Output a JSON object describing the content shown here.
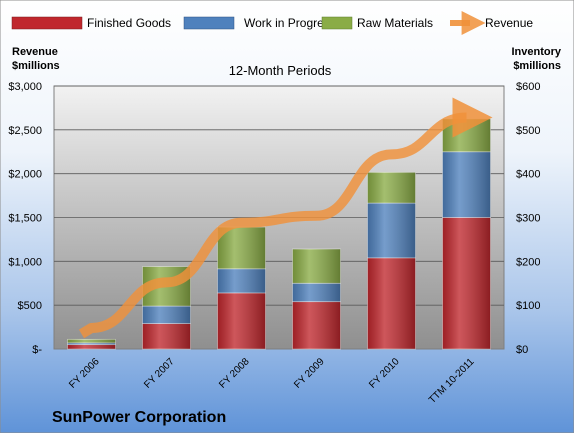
{
  "chart_data": {
    "type": "bar",
    "stacked": true,
    "subtitle": "12-Month Periods",
    "caption": "SunPower Corporation",
    "left_axis_title": [
      "Revenue",
      "$millions"
    ],
    "right_axis_title": [
      "Inventory",
      "$millions"
    ],
    "categories": [
      "FY 2006",
      "FY 2007",
      "FY 2008",
      "FY 2009",
      "FY 2010",
      "TTM 10-2011"
    ],
    "series": [
      {
        "name": "Finished Goods",
        "axis": "right",
        "color": "#c0272d",
        "values": [
          10,
          58,
          128,
          108,
          208,
          300
        ]
      },
      {
        "name": "Work in Progress",
        "axis": "right",
        "color": "#4f81bd",
        "values": [
          4,
          40,
          55,
          42,
          125,
          150
        ]
      },
      {
        "name": "Raw Materials",
        "axis": "right",
        "color": "#8aac46",
        "values": [
          8,
          90,
          95,
          78,
          70,
          75
        ]
      }
    ],
    "line_series": [
      {
        "name": "Revenue",
        "axis": "left",
        "color": "#f0913a",
        "values": [
          240,
          760,
          1440,
          1520,
          2220,
          2640
        ]
      }
    ],
    "left_axis": {
      "ylim": [
        0,
        3000
      ],
      "ticks": [
        "$-",
        "$500",
        "$1,000",
        "$1,500",
        "$2,000",
        "$2,500",
        "$3,000"
      ]
    },
    "right_axis": {
      "ylim": [
        0,
        600
      ],
      "ticks": [
        "$0",
        "$100",
        "$200",
        "$300",
        "$400",
        "$500",
        "$600"
      ]
    },
    "grid": true,
    "legend_position": "top"
  }
}
